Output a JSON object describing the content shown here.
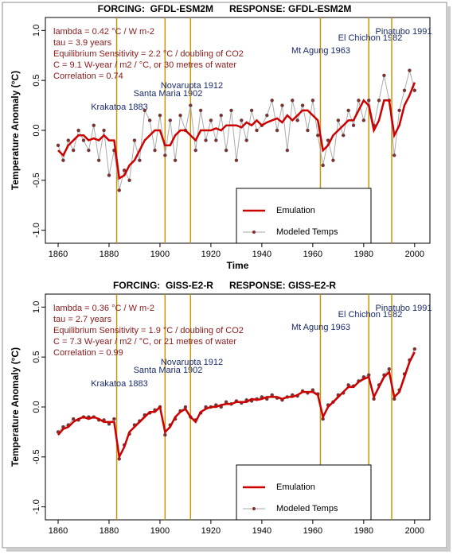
{
  "chart_data": [
    {
      "type": "line",
      "title": "FORCING:  GFDL-ESM2M      RESPONSE: GFDL-ESM2M",
      "annotations": [
        "lambda = 0.42 °C / W m-2",
        "tau = 3.9 years",
        "Equilibrium Sensitivity = 2.2 °C / doubling of CO2",
        "C = 9.1 W-year / m2 / °C, or 30 metres of water",
        "Correlation = 0.74"
      ],
      "xlabel": "Time",
      "ylabel": "Temperature Anomaly (°C)",
      "x": [
        1860,
        1862,
        1864,
        1866,
        1868,
        1870,
        1872,
        1874,
        1876,
        1878,
        1880,
        1882,
        1884,
        1886,
        1888,
        1890,
        1892,
        1894,
        1896,
        1898,
        1900,
        1902,
        1904,
        1906,
        1908,
        1910,
        1912,
        1914,
        1916,
        1918,
        1920,
        1922,
        1924,
        1926,
        1928,
        1930,
        1932,
        1934,
        1936,
        1938,
        1940,
        1942,
        1944,
        1946,
        1948,
        1950,
        1952,
        1954,
        1956,
        1958,
        1960,
        1962,
        1964,
        1966,
        1968,
        1970,
        1972,
        1974,
        1976,
        1978,
        1980,
        1982,
        1984,
        1986,
        1988,
        1990,
        1992,
        1994,
        1996,
        1998,
        2000
      ],
      "series": [
        {
          "name": "Emulation",
          "color": "#cc0000",
          "values": [
            -0.2,
            -0.25,
            -0.15,
            -0.1,
            -0.05,
            -0.05,
            -0.1,
            -0.08,
            -0.1,
            -0.05,
            -0.1,
            -0.1,
            -0.48,
            -0.45,
            -0.35,
            -0.3,
            -0.2,
            -0.1,
            -0.05,
            0.0,
            0.0,
            -0.15,
            -0.15,
            -0.05,
            0.0,
            0.0,
            -0.05,
            -0.1,
            0.0,
            0.0,
            0.0,
            0.02,
            0.0,
            0.05,
            0.05,
            0.05,
            0.03,
            0.08,
            0.05,
            0.1,
            0.05,
            0.08,
            0.1,
            0.12,
            0.08,
            0.15,
            0.1,
            0.15,
            0.2,
            0.2,
            0.15,
            0.1,
            -0.2,
            -0.15,
            -0.05,
            0.0,
            0.05,
            0.1,
            0.1,
            0.2,
            0.3,
            0.25,
            0.0,
            0.1,
            0.3,
            0.3,
            -0.05,
            0.05,
            0.25,
            0.35,
            0.48
          ]
        },
        {
          "name": "Modeled Temps",
          "color": "#aaaaaa",
          "marker_color": "#8b2a2a",
          "values": [
            -0.15,
            -0.3,
            -0.1,
            -0.2,
            0.0,
            -0.1,
            -0.2,
            0.05,
            -0.3,
            0.0,
            -0.45,
            -0.2,
            -0.6,
            -0.4,
            -0.5,
            -0.1,
            -0.3,
            0.2,
            0.1,
            -0.2,
            0.15,
            -0.25,
            0.1,
            -0.3,
            0.15,
            0.0,
            0.25,
            -0.2,
            0.2,
            -0.1,
            0.1,
            -0.1,
            0.15,
            -0.2,
            0.2,
            -0.3,
            0.1,
            -0.1,
            0.2,
            0.0,
            0.05,
            0.15,
            0.3,
            0.0,
            0.25,
            -0.2,
            0.3,
            0.1,
            0.25,
            0.0,
            0.3,
            -0.05,
            -0.35,
            -0.1,
            -0.3,
            0.1,
            -0.05,
            0.2,
            0.05,
            0.3,
            0.1,
            0.3,
            0.05,
            0.3,
            0.55,
            0.3,
            -0.25,
            0.2,
            0.4,
            0.6,
            0.4
          ]
        }
      ],
      "volcanoes": [
        {
          "label": "Krakatoa 1883",
          "year": 1883
        },
        {
          "label": "Santa Maria 1902",
          "year": 1902
        },
        {
          "label": "Novarupta 1912",
          "year": 1912
        },
        {
          "label": "Mt Agung 1963",
          "year": 1963
        },
        {
          "label": "El Chichon 1982",
          "year": 1982
        },
        {
          "label": "Pinatubo 1991",
          "year": 1991
        }
      ],
      "volcano_color": "#c8960a",
      "xlim": [
        1855,
        2006
      ],
      "ylim": [
        -1.13,
        1.13
      ],
      "xticks": [
        1860,
        1880,
        1900,
        1920,
        1940,
        1960,
        1980,
        2000
      ],
      "yticks": [
        {
          "value": -1,
          "label": "-1.0"
        },
        {
          "value": -0.5,
          "label": "-0.5"
        },
        {
          "value": 0,
          "label": "0.0"
        },
        {
          "value": 0.5,
          "label": "0.5"
        },
        {
          "value": 1,
          "label": "1.0"
        }
      ]
    },
    {
      "type": "line",
      "title": "FORCING:  GISS-E2-R      RESPONSE: GISS-E2-R",
      "annotations": [
        "lambda = 0.36 °C / W m-2",
        "tau = 2.7 years",
        "Equilibrium Sensitivity = 1.9 °C / doubling of CO2",
        "C = 7.3 W-year / m2 / °C, or 21 metres of water",
        "Correlation = 0.99"
      ],
      "ylabel": "Temperature Anomaly (°C)",
      "x": [
        1860,
        1862,
        1864,
        1866,
        1868,
        1870,
        1872,
        1874,
        1876,
        1878,
        1880,
        1882,
        1884,
        1886,
        1888,
        1890,
        1892,
        1894,
        1896,
        1898,
        1900,
        1902,
        1904,
        1906,
        1908,
        1910,
        1912,
        1914,
        1916,
        1918,
        1920,
        1922,
        1924,
        1926,
        1928,
        1930,
        1932,
        1934,
        1936,
        1938,
        1940,
        1942,
        1944,
        1946,
        1948,
        1950,
        1952,
        1954,
        1956,
        1958,
        1960,
        1962,
        1964,
        1966,
        1968,
        1970,
        1972,
        1974,
        1976,
        1978,
        1980,
        1982,
        1984,
        1986,
        1988,
        1990,
        1992,
        1994,
        1996,
        1998,
        2000
      ],
      "series": [
        {
          "name": "Emulation",
          "color": "#cc0000",
          "values": [
            -0.28,
            -0.22,
            -0.2,
            -0.15,
            -0.12,
            -0.1,
            -0.12,
            -0.1,
            -0.12,
            -0.15,
            -0.15,
            -0.15,
            -0.5,
            -0.4,
            -0.25,
            -0.2,
            -0.15,
            -0.1,
            -0.05,
            -0.05,
            0.0,
            -0.25,
            -0.2,
            -0.1,
            -0.05,
            -0.02,
            -0.1,
            -0.15,
            -0.05,
            -0.02,
            0.0,
            0.0,
            0.02,
            0.03,
            0.03,
            0.05,
            0.05,
            0.05,
            0.08,
            0.07,
            0.08,
            0.1,
            0.1,
            0.1,
            0.08,
            0.1,
            0.1,
            0.12,
            0.15,
            0.15,
            0.15,
            0.12,
            -0.1,
            0.0,
            0.05,
            0.1,
            0.15,
            0.2,
            0.2,
            0.25,
            0.28,
            0.3,
            0.1,
            0.2,
            0.3,
            0.35,
            0.1,
            0.15,
            0.3,
            0.45,
            0.55
          ]
        },
        {
          "name": "Modeled Temps",
          "color": "#aaaaaa",
          "marker_color": "#8b2a2a",
          "values": [
            -0.25,
            -0.2,
            -0.18,
            -0.12,
            -0.13,
            -0.1,
            -0.1,
            -0.1,
            -0.13,
            -0.13,
            -0.17,
            -0.12,
            -0.52,
            -0.38,
            -0.27,
            -0.18,
            -0.14,
            -0.08,
            -0.06,
            -0.03,
            0.0,
            -0.28,
            -0.18,
            -0.12,
            -0.04,
            0.0,
            -0.1,
            -0.13,
            -0.06,
            0.0,
            0.0,
            0.02,
            0.0,
            0.05,
            0.03,
            0.06,
            0.04,
            0.07,
            0.06,
            0.08,
            0.1,
            0.08,
            0.12,
            0.09,
            0.07,
            0.1,
            0.12,
            0.11,
            0.16,
            0.14,
            0.17,
            0.13,
            -0.12,
            0.02,
            0.05,
            0.12,
            0.14,
            0.22,
            0.21,
            0.26,
            0.3,
            0.32,
            0.08,
            0.22,
            0.32,
            0.38,
            0.08,
            0.17,
            0.33,
            0.47,
            0.58
          ]
        }
      ],
      "volcanoes": [
        {
          "label": "Krakatoa 1883",
          "year": 1883
        },
        {
          "label": "Santa Maria 1902",
          "year": 1902
        },
        {
          "label": "Novarupta 1912",
          "year": 1912
        },
        {
          "label": "Mt Agung 1963",
          "year": 1963
        },
        {
          "label": "El Chichon 1982",
          "year": 1982
        },
        {
          "label": "Pinatubo 1991",
          "year": 1991
        }
      ],
      "volcano_color": "#c8960a",
      "xlim": [
        1855,
        2006
      ],
      "ylim": [
        -1.13,
        1.13
      ],
      "xticks": [
        1860,
        1880,
        1900,
        1920,
        1940,
        1960,
        1980,
        2000
      ],
      "yticks": [
        {
          "value": -1,
          "label": "-1.0"
        },
        {
          "value": -0.5,
          "label": "-0.5"
        },
        {
          "value": 0,
          "label": "0.0"
        },
        {
          "value": 0.5,
          "label": "0.5"
        },
        {
          "value": 1,
          "label": "1.0"
        }
      ]
    }
  ]
}
